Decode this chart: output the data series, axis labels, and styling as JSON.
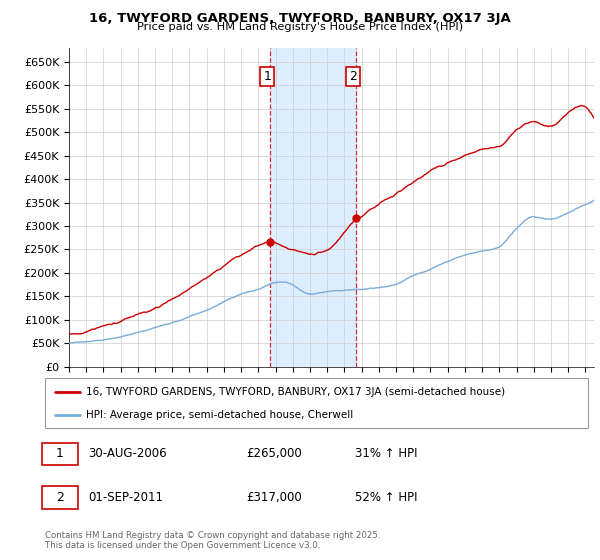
{
  "title": "16, TWYFORD GARDENS, TWYFORD, BANBURY, OX17 3JA",
  "subtitle": "Price paid vs. HM Land Registry's House Price Index (HPI)",
  "ylim": [
    0,
    680000
  ],
  "xlim_start": 1995,
  "xlim_end": 2025.5,
  "purchase1_x": 2006.67,
  "purchase1_price": 265000,
  "purchase1_label": "1",
  "purchase2_x": 2011.67,
  "purchase2_price": 317000,
  "purchase2_label": "2",
  "line_color_property": "#cc0000",
  "line_color_hpi": "#7aacdc",
  "shade_color": "#ddeeff",
  "grid_color": "#cccccc",
  "background_color": "#ffffff",
  "legend_line1": "16, TWYFORD GARDENS, TWYFORD, BANBURY, OX17 3JA (semi-detached house)",
  "legend_line2": "HPI: Average price, semi-detached house, Cherwell",
  "footnote": "Contains HM Land Registry data © Crown copyright and database right 2025.\nThis data is licensed under the Open Government Licence v3.0.",
  "table_entries": [
    {
      "num": "1",
      "date": "30-AUG-2006",
      "price": "£265,000",
      "hpi": "31% ↑ HPI"
    },
    {
      "num": "2",
      "date": "01-SEP-2011",
      "price": "£317,000",
      "hpi": "52% ↑ HPI"
    }
  ]
}
